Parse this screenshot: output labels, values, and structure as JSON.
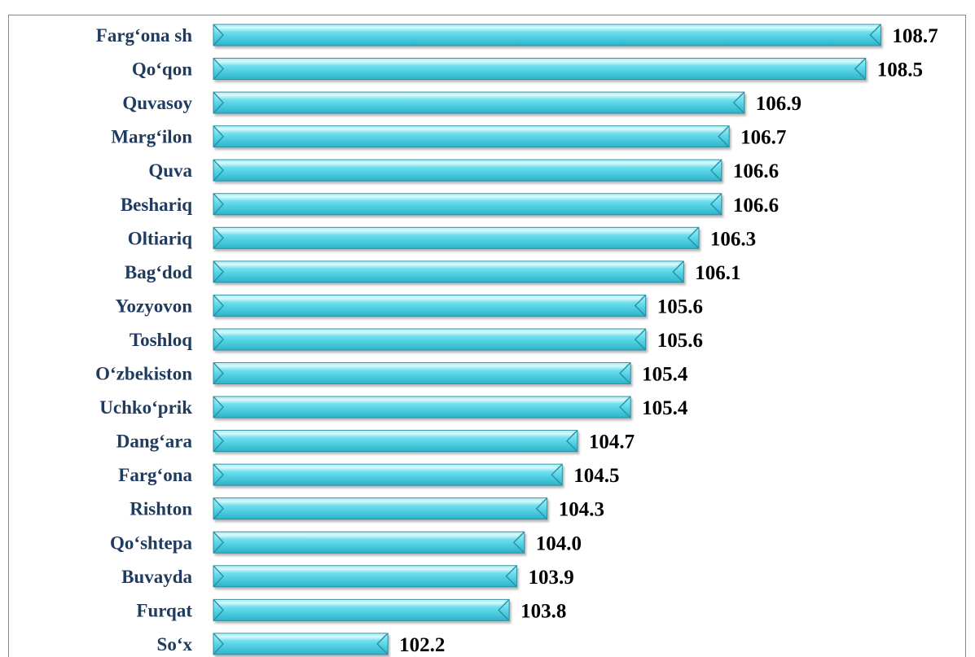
{
  "chart_data": {
    "type": "bar",
    "orientation": "horizontal",
    "title": "",
    "categories": [
      "Farg‘ona sh",
      "Qo‘qon",
      "Quvasoy",
      "Marg‘ilon",
      "Quva",
      "Beshariq",
      "Oltiariq",
      "Bag‘dod",
      "Yozyovon",
      "Toshloq",
      "O‘zbekiston",
      "Uchko‘prik",
      "Dang‘ara",
      "Farg‘ona",
      "Rishton",
      "Qo‘shtepa",
      "Buvayda",
      "Furqat",
      "So‘x"
    ],
    "values": [
      108.7,
      108.5,
      106.9,
      106.7,
      106.6,
      106.6,
      106.3,
      106.1,
      105.6,
      105.6,
      105.4,
      105.4,
      104.7,
      104.5,
      104.3,
      104.0,
      103.9,
      103.8,
      102.2
    ],
    "value_labels": [
      "108.7",
      "108.5",
      "106.9",
      "106.7",
      "106.6",
      "106.6",
      "106.3",
      "106.1",
      "105.6",
      "105.6",
      "105.4",
      "105.4",
      "104.7",
      "104.5",
      "104.3",
      "104.0",
      "103.9",
      "103.8",
      "102.2"
    ],
    "xlabel": "",
    "ylabel": "",
    "xlim": [
      99.9,
      108.9
    ],
    "grid": false,
    "legend": "none",
    "colors": {
      "bar_fill": "#63d8e8",
      "bar_light": "#bff3f9",
      "bar_edge": "#2a8da0",
      "label_color": "#1f3c60",
      "value_color": "#000000"
    }
  }
}
